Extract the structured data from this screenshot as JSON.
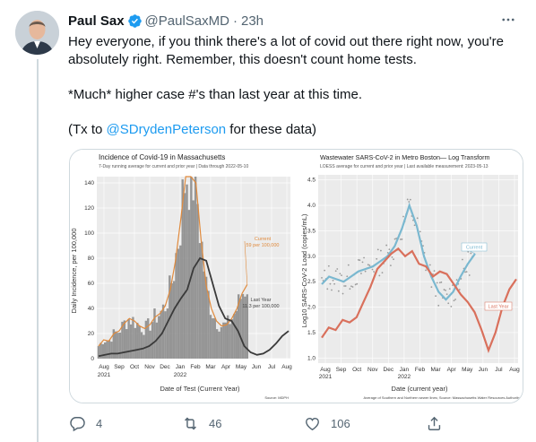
{
  "tweet": {
    "author": {
      "name": "Paul Sax",
      "handle": "@PaulSaxMD",
      "verified": true
    },
    "time": "23h",
    "separator": "·",
    "text": {
      "p1": "Hey everyone, if you think there's a lot of covid out there right now, you're absolutely right. Remember, this doesn't count home tests.",
      "p2": "*Much* higher case #'s than last year at this time.",
      "p3_before": "(Tx to ",
      "p3_mention": "@SDrydenPeterson",
      "p3_after": " for these data)"
    },
    "actions": {
      "reply_count": "4",
      "retweet_count": "46",
      "like_count": "106"
    },
    "colors": {
      "accent": "#1d9bf0",
      "secondary_text": "#536471",
      "border": "#cfd9de"
    },
    "icons": [
      "verified-badge-icon",
      "more-icon",
      "reply-icon",
      "retweet-icon",
      "like-icon",
      "share-icon"
    ]
  },
  "chart_data": [
    {
      "type": "bar",
      "title": "Incidence of Covid-19 in Massachusetts",
      "subtitle": "7-Day running average for current and prior year | Data through 2022-05-10",
      "xlabel": "Date of Test (Current Year)",
      "ylabel": "Daily Incidence, per 100,000",
      "ylim": [
        0,
        145
      ],
      "yticks": [
        "0",
        "20",
        "40",
        "60",
        "80",
        "100",
        "120",
        "140"
      ],
      "xticks": [
        "Aug",
        "Sep",
        "Oct",
        "Nov",
        "Dec",
        "Jan",
        "Feb",
        "Mar",
        "Apr",
        "May",
        "Jun",
        "Jul",
        "Aug"
      ],
      "year_labels": [
        "2021",
        "2022"
      ],
      "source": "Source: MDPH",
      "series": [
        {
          "name": "Current",
          "color": "#e08a3c",
          "annotation": "59 per 100,000",
          "values": [
            10,
            15,
            14,
            20,
            22,
            28,
            32,
            30,
            26,
            24,
            27,
            33,
            36,
            42,
            55,
            78,
            110,
            150,
            150,
            140,
            95,
            58,
            40,
            30,
            26,
            27,
            32,
            40,
            52,
            59
          ]
        },
        {
          "name": "Last Year",
          "color": "#3a3a3a",
          "annotation": "11.3 per 100,000",
          "values": [
            2,
            3,
            4,
            4,
            5,
            6,
            7,
            8,
            10,
            14,
            20,
            30,
            40,
            48,
            55,
            72,
            80,
            78,
            60,
            42,
            32,
            30,
            22,
            10,
            5,
            3,
            4,
            7,
            12,
            18,
            22
          ]
        }
      ],
      "daily_bars_color": "#8c8c8c"
    },
    {
      "type": "line",
      "title": "Wastewater SARS-CoV-2 in Metro Boston— Log Transform",
      "subtitle": "LOESS average for current and prior year | Last available measurement: 2023-05-13",
      "xlabel": "Date (current year)",
      "ylabel": "Log10 SARS-CoV-2 Load (copies/mL)",
      "ylim": [
        0.9,
        4.6
      ],
      "yticks": [
        "1.0",
        "1.5",
        "2.0",
        "2.5",
        "3.0",
        "3.5",
        "4.0",
        "4.5"
      ],
      "xticks": [
        "Aug",
        "Sep",
        "Oct",
        "Nov",
        "Dec",
        "Jan",
        "Feb",
        "Mar",
        "Apr",
        "May",
        "Jun",
        "Jul",
        "Aug"
      ],
      "year_labels": [
        "2021",
        "2022"
      ],
      "source": "Average of Southern and Northern sewer lines; Source: Massachusetts Water Resources Authority",
      "series": [
        {
          "name": "Current",
          "color": "#7ab8d0",
          "values": [
            2.45,
            2.6,
            2.55,
            2.5,
            2.6,
            2.7,
            2.75,
            2.8,
            2.9,
            3.0,
            3.2,
            3.55,
            4.0,
            3.6,
            3.0,
            2.6,
            2.3,
            2.15,
            2.3,
            2.6,
            2.85,
            3.05
          ]
        },
        {
          "name": "Last Year",
          "color": "#d9705c",
          "values": [
            1.4,
            1.6,
            1.55,
            1.75,
            1.7,
            1.8,
            2.1,
            2.4,
            2.75,
            2.9,
            3.05,
            3.15,
            3.0,
            3.1,
            2.85,
            2.8,
            2.6,
            2.7,
            2.65,
            2.45,
            2.25,
            2.1,
            1.9,
            1.55,
            1.15,
            1.5,
            2.0,
            2.35,
            2.55
          ]
        }
      ],
      "scatter_color": "#9a9a9a"
    }
  ]
}
